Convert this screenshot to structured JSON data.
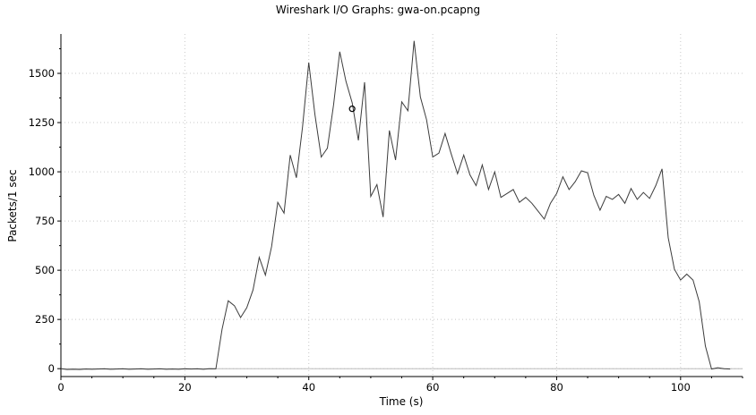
{
  "chart_data": {
    "type": "line",
    "title": "Wireshark I/O Graphs: gwa-on.pcapng",
    "xlabel": "Time (s)",
    "ylabel": "Packets/1 sec",
    "xlim": [
      0,
      110
    ],
    "ylim": [
      -40,
      1700
    ],
    "xticks": [
      0,
      20,
      40,
      60,
      80,
      100
    ],
    "yticks": [
      0,
      250,
      500,
      750,
      1000,
      1250,
      1500
    ],
    "grid": true,
    "marker_point": {
      "x": 47,
      "y": 1320
    },
    "series": [
      {
        "color": "#3c3c3c",
        "x": [
          0,
          1,
          2,
          3,
          4,
          5,
          6,
          7,
          8,
          9,
          10,
          11,
          12,
          13,
          14,
          15,
          16,
          17,
          18,
          19,
          20,
          21,
          22,
          23,
          24,
          25,
          26,
          27,
          28,
          29,
          30,
          31,
          32,
          33,
          34,
          35,
          36,
          37,
          38,
          39,
          40,
          41,
          42,
          43,
          44,
          45,
          46,
          47,
          48,
          49,
          50,
          51,
          52,
          53,
          54,
          55,
          56,
          57,
          58,
          59,
          60,
          61,
          62,
          63,
          64,
          65,
          66,
          67,
          68,
          69,
          70,
          71,
          72,
          73,
          74,
          75,
          76,
          77,
          78,
          79,
          80,
          81,
          82,
          83,
          84,
          85,
          86,
          87,
          88,
          89,
          90,
          91,
          92,
          93,
          94,
          95,
          96,
          97,
          98,
          99,
          100,
          101,
          102,
          103,
          104,
          105,
          106,
          107,
          108
        ],
        "y": [
          0,
          -4,
          -3,
          -4,
          -2,
          -3,
          -2,
          -1,
          -3,
          -2,
          -1,
          -3,
          -2,
          -1,
          -3,
          -2,
          -1,
          -3,
          -2,
          -3,
          -1,
          -2,
          -1,
          -3,
          0,
          -1,
          200,
          345,
          320,
          260,
          310,
          400,
          565,
          475,
          620,
          845,
          790,
          1085,
          970,
          1230,
          1555,
          1290,
          1075,
          1120,
          1340,
          1610,
          1460,
          1350,
          1160,
          1455,
          875,
          935,
          770,
          1210,
          1060,
          1355,
          1310,
          1665,
          1380,
          1265,
          1075,
          1095,
          1195,
          1090,
          990,
          1085,
          985,
          930,
          1035,
          910,
          1000,
          870,
          890,
          910,
          845,
          870,
          840,
          800,
          760,
          840,
          890,
          975,
          910,
          950,
          1005,
          995,
          880,
          805,
          875,
          860,
          885,
          840,
          915,
          860,
          895,
          865,
          930,
          1015,
          665,
          505,
          450,
          480,
          450,
          340,
          115,
          -2,
          5,
          0,
          -2
        ]
      }
    ]
  }
}
